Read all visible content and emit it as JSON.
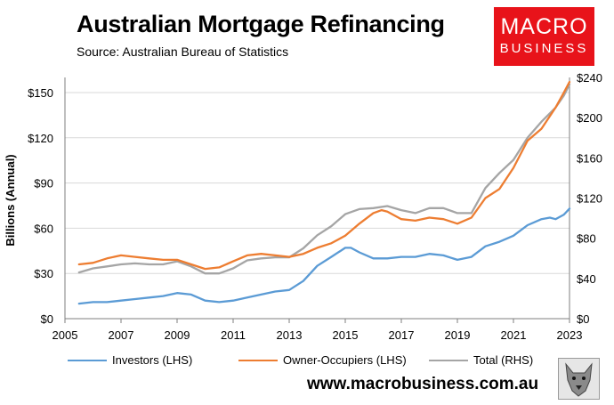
{
  "title": "Australian Mortgage Refinancing",
  "subtitle": "Source: Australian Bureau of Statistics",
  "logo": {
    "line1": "MACRO",
    "line2": "BUSINESS"
  },
  "website": "www.macrobusiness.com.au",
  "colors": {
    "investors": "#5b9bd5",
    "owner_occupiers": "#ed7d31",
    "total": "#a5a5a5",
    "logo_bg": "#e8131a",
    "grid": "#d9d9d9"
  },
  "chart_data": {
    "type": "line",
    "title": "Australian Mortgage Refinancing",
    "ylabel": "Billions (Annual)",
    "ylim": [
      0,
      160
    ],
    "y2lim": [
      0,
      240
    ],
    "xlim": [
      2005,
      2023
    ],
    "grid": true,
    "legend_position": "bottom",
    "x_ticks": [
      "2005",
      "2007",
      "2009",
      "2011",
      "2013",
      "2015",
      "2017",
      "2019",
      "2021",
      "2023"
    ],
    "y_ticks": [
      "$0",
      "$30",
      "$60",
      "$90",
      "$120",
      "$150"
    ],
    "y2_ticks": [
      "$0",
      "$40",
      "$80",
      "$120",
      "$160",
      "$200",
      "$240"
    ],
    "series": [
      {
        "name": "Investors (LHS)",
        "axis": "left",
        "x": [
          2005.5,
          2006,
          2006.5,
          2007,
          2007.5,
          2008,
          2008.5,
          2009,
          2009.5,
          2010,
          2010.5,
          2011,
          2011.5,
          2012,
          2012.5,
          2013,
          2013.5,
          2014,
          2014.5,
          2015,
          2015.2,
          2015.5,
          2016,
          2016.5,
          2017,
          2017.5,
          2018,
          2018.5,
          2019,
          2019.5,
          2020,
          2020.5,
          2021,
          2021.5,
          2022,
          2022.3,
          2022.5,
          2022.8,
          2023
        ],
        "values": [
          10,
          11,
          11,
          12,
          13,
          14,
          15,
          17,
          16,
          12,
          11,
          12,
          14,
          16,
          18,
          19,
          25,
          35,
          41,
          47,
          47,
          44,
          40,
          40,
          41,
          41,
          43,
          42,
          39,
          41,
          48,
          51,
          55,
          62,
          66,
          67,
          66,
          69,
          73
        ]
      },
      {
        "name": "Owner-Occupiers (LHS)",
        "axis": "left",
        "x": [
          2005.5,
          2006,
          2006.5,
          2007,
          2007.5,
          2008,
          2008.5,
          2009,
          2009.5,
          2010,
          2010.5,
          2011,
          2011.5,
          2012,
          2012.5,
          2013,
          2013.5,
          2014,
          2014.5,
          2015,
          2015.5,
          2016,
          2016.3,
          2016.5,
          2017,
          2017.5,
          2018,
          2018.5,
          2019,
          2019.5,
          2020,
          2020.5,
          2021,
          2021.5,
          2022,
          2022.5,
          2022.8,
          2023
        ],
        "values": [
          36,
          37,
          40,
          42,
          41,
          40,
          39,
          39,
          36,
          33,
          34,
          38,
          42,
          43,
          42,
          41,
          43,
          47,
          50,
          55,
          63,
          70,
          72,
          71,
          66,
          65,
          67,
          66,
          63,
          67,
          80,
          86,
          100,
          118,
          126,
          140,
          150,
          157
        ]
      },
      {
        "name": "Total (RHS)",
        "axis": "right",
        "x": [
          2005.5,
          2006,
          2006.5,
          2007,
          2007.5,
          2008,
          2008.5,
          2009,
          2009.5,
          2010,
          2010.5,
          2011,
          2011.5,
          2012,
          2012.5,
          2013,
          2013.5,
          2014,
          2014.5,
          2015,
          2015.5,
          2016,
          2016.5,
          2017,
          2017.5,
          2018,
          2018.5,
          2019,
          2019.5,
          2020,
          2020.5,
          2021,
          2021.5,
          2022,
          2022.5,
          2022.8,
          2023
        ],
        "values": [
          46,
          50,
          52,
          54,
          55,
          54,
          54,
          57,
          52,
          45,
          45,
          50,
          58,
          60,
          61,
          61,
          70,
          83,
          92,
          104,
          109,
          110,
          112,
          108,
          105,
          110,
          110,
          105,
          105,
          130,
          145,
          158,
          180,
          196,
          210,
          222,
          233
        ]
      }
    ]
  }
}
